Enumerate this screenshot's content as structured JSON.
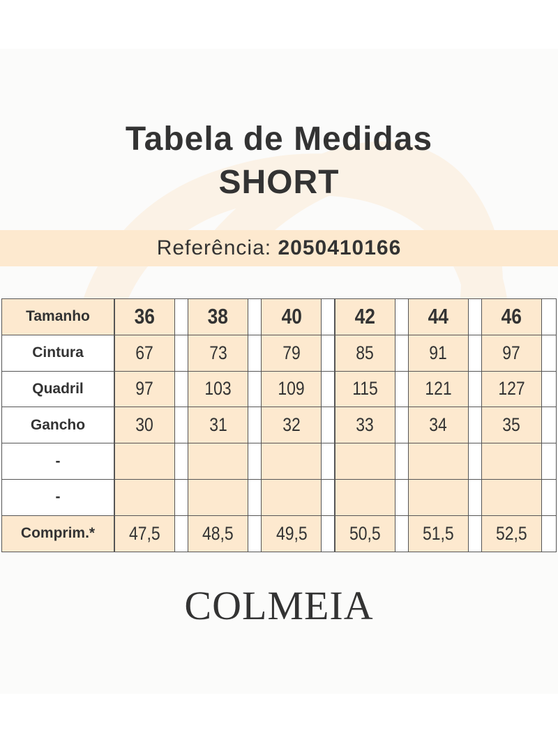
{
  "header": {
    "title": "Tabela de Medidas",
    "subtitle": "SHORT",
    "reference_label": "Referência:",
    "reference_number": "2050410166"
  },
  "table": {
    "rows": [
      {
        "label": "Tamanho",
        "values": [
          "36",
          "38",
          "40",
          "42",
          "44",
          "46"
        ]
      },
      {
        "label": "Cintura",
        "values": [
          "67",
          "73",
          "79",
          "85",
          "91",
          "97"
        ]
      },
      {
        "label": "Quadril",
        "values": [
          "97",
          "103",
          "109",
          "115",
          "121",
          "127"
        ]
      },
      {
        "label": "Gancho",
        "values": [
          "30",
          "31",
          "32",
          "33",
          "34",
          "35"
        ]
      },
      {
        "label": "-"
      },
      {
        "label": "-"
      },
      {
        "label": "Comprim.*",
        "values": [
          "47,5",
          "48,5",
          "49,5",
          "50,5",
          "51,5",
          "52,5"
        ]
      }
    ]
  },
  "footer": {
    "brand": "COLMEIA"
  }
}
